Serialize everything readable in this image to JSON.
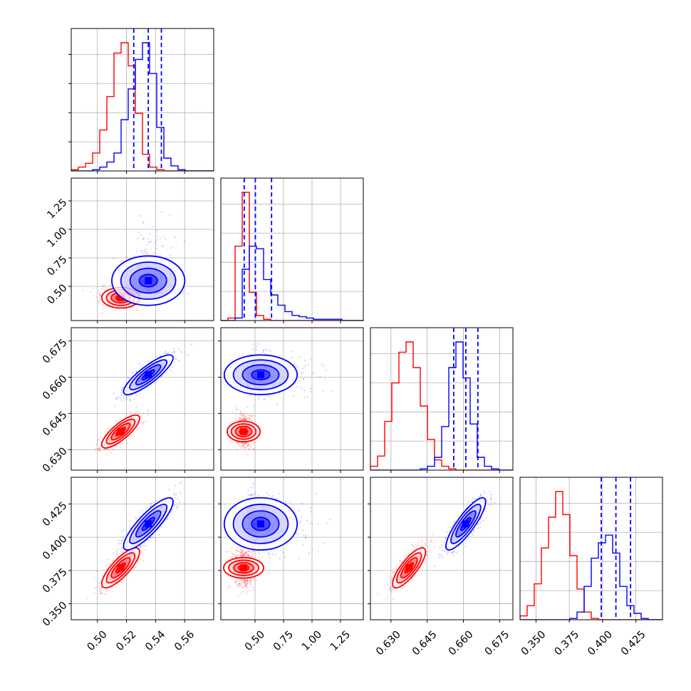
{
  "chart_data": {
    "type": "corner",
    "title": "",
    "grid": true,
    "parameters": [
      {
        "id": "p1",
        "range": [
          0.482,
          0.58
        ],
        "ticks": [
          0.5,
          0.52,
          0.54,
          0.56
        ],
        "tick_labels": [
          "0.50",
          "0.52",
          "0.54",
          "0.56"
        ]
      },
      {
        "id": "p2",
        "range": [
          0.2,
          1.45
        ],
        "ticks": [
          0.5,
          0.75,
          1.0,
          1.25
        ],
        "tick_labels": [
          "0.50",
          "0.75",
          "1.00",
          "1.25"
        ]
      },
      {
        "id": "p3",
        "range": [
          0.6215,
          0.6805
        ],
        "ticks": [
          0.63,
          0.645,
          0.66,
          0.675
        ],
        "tick_labels": [
          "0.630",
          "0.645",
          "0.660",
          "0.675"
        ]
      },
      {
        "id": "p4",
        "range": [
          0.338,
          0.445
        ],
        "ticks": [
          0.35,
          0.375,
          0.4,
          0.425
        ],
        "tick_labels": [
          "0.350",
          "0.375",
          "0.400",
          "0.425"
        ]
      }
    ],
    "colors": {
      "series_a": "#ff0000",
      "series_b": "#0000ff"
    },
    "series": [
      {
        "color": "#ff0000",
        "means": [
          0.516,
          0.4,
          0.6375,
          0.377
        ],
        "sds": [
          0.0065,
          0.045,
          0.0034,
          0.0075
        ],
        "correlations": {
          "0-2": 0.8,
          "0-3": 0.8,
          "2-3": 0.8,
          "0-1": 0.0,
          "1-2": 0.0,
          "1-3": 0.0
        },
        "histograms": [
          {
            "edges_start": 0.482,
            "bin_width": 0.0049,
            "counts": [
              1,
              3,
              6,
              14,
              32,
              58,
              92,
              100,
              82,
              45,
              13,
              3,
              1,
              0,
              0,
              0,
              0,
              0,
              0,
              0
            ]
          },
          {
            "edges_start": 0.2,
            "bin_width": 0.0625,
            "counts": [
              0,
              2,
              58,
              100,
              22,
              4,
              1,
              0,
              0,
              0,
              0,
              0,
              0,
              0,
              0,
              0,
              0,
              0,
              0,
              0
            ]
          },
          {
            "edges_start": 0.6215,
            "bin_width": 0.00295,
            "counts": [
              3,
              11,
              38,
              68,
              92,
              100,
              80,
              50,
              24,
              8,
              3,
              1,
              0,
              0,
              0,
              0,
              0,
              0,
              0,
              0
            ]
          },
          {
            "edges_start": 0.338,
            "bin_width": 0.00535,
            "counts": [
              3,
              11,
              28,
              56,
              80,
              100,
              82,
              50,
              24,
              6,
              1,
              0,
              0,
              0,
              0,
              0,
              0,
              0,
              0,
              0
            ]
          }
        ]
      },
      {
        "color": "#0000ff",
        "means": [
          0.535,
          0.55,
          0.661,
          0.41
        ],
        "sds": [
          0.0085,
          0.16,
          0.0041,
          0.0098
        ],
        "correlations": {
          "0-2": 0.85,
          "0-3": 0.85,
          "2-3": 0.85,
          "0-1": 0.0,
          "1-2": 0.0,
          "1-3": 0.0
        },
        "quantiles": [
          [
            0.525,
            0.535,
            0.544
          ],
          [
            0.405,
            0.503,
            0.645
          ],
          [
            0.656,
            0.661,
            0.666
          ],
          [
            0.399,
            0.41,
            0.421
          ]
        ],
        "histograms": [
          {
            "edges_start": 0.482,
            "bin_width": 0.0049,
            "counts": [
              0,
              0,
              0,
              1,
              3,
              7,
              14,
              40,
              64,
              87,
              100,
              76,
              34,
              10,
              4,
              1,
              0,
              0,
              0,
              0
            ]
          },
          {
            "edges_start": 0.2,
            "bin_width": 0.0625,
            "counts": [
              0,
              0,
              2,
              40,
              58,
              56,
              32,
              20,
              12,
              7,
              4,
              3,
              2,
              1,
              1,
              1,
              1,
              0,
              0,
              0
            ]
          },
          {
            "edges_start": 0.6215,
            "bin_width": 0.00295,
            "counts": [
              0,
              0,
              0,
              0,
              0,
              0,
              0,
              1,
              3,
              10,
              34,
              80,
              100,
              72,
              36,
              10,
              3,
              1,
              0,
              0
            ]
          },
          {
            "edges_start": 0.338,
            "bin_width": 0.00535,
            "counts": [
              0,
              0,
              0,
              0,
              0,
              0,
              0,
              1,
              6,
              26,
              48,
              60,
              66,
              52,
              26,
              11,
              5,
              1,
              0,
              0
            ]
          }
        ]
      }
    ]
  }
}
